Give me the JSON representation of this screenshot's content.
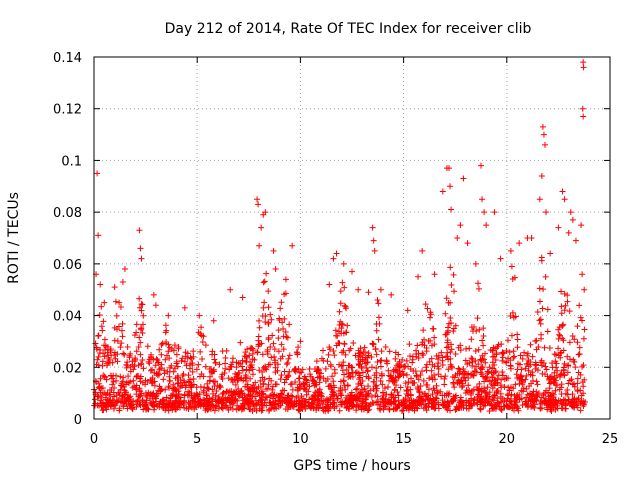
{
  "chart_data": {
    "type": "scatter",
    "title": "Day 212 of 2014, Rate Of TEC Index for receiver clib",
    "xlabel": "GPS time / hours",
    "ylabel": "ROTI / TECUs",
    "xlim": [
      0,
      25
    ],
    "ylim": [
      0,
      0.14
    ],
    "xticks": [
      0,
      5,
      10,
      15,
      20,
      25
    ],
    "xtick_labels": [
      "0",
      "5",
      "10",
      "15",
      "20",
      "25"
    ],
    "yticks": [
      0,
      0.02,
      0.04,
      0.06,
      0.08,
      0.1,
      0.12,
      0.14
    ],
    "ytick_labels": [
      "0",
      "0.02",
      "0.04",
      "0.06",
      "0.08",
      "0.1",
      "0.12",
      "0.14"
    ],
    "grid": true,
    "marker": "+",
    "color": "#ff0000",
    "series": [
      {
        "name": "ROTI",
        "points": [
          [
            0.15,
            0.095
          ],
          [
            0.2,
            0.071
          ],
          [
            0.1,
            0.056
          ],
          [
            0.3,
            0.052
          ],
          [
            0.5,
            0.045
          ],
          [
            1.0,
            0.051
          ],
          [
            1.4,
            0.053
          ],
          [
            1.5,
            0.058
          ],
          [
            2.2,
            0.073
          ],
          [
            2.25,
            0.066
          ],
          [
            2.3,
            0.062
          ],
          [
            2.9,
            0.048
          ],
          [
            3.0,
            0.044
          ],
          [
            3.6,
            0.04
          ],
          [
            4.4,
            0.043
          ],
          [
            5.1,
            0.04
          ],
          [
            5.8,
            0.038
          ],
          [
            6.6,
            0.05
          ],
          [
            7.2,
            0.047
          ],
          [
            7.9,
            0.085
          ],
          [
            7.95,
            0.083
          ],
          [
            8.2,
            0.079
          ],
          [
            8.3,
            0.08
          ],
          [
            8.0,
            0.067
          ],
          [
            8.1,
            0.074
          ],
          [
            8.7,
            0.065
          ],
          [
            8.8,
            0.058
          ],
          [
            9.3,
            0.054
          ],
          [
            9.6,
            0.067
          ],
          [
            10.0,
            0.03
          ],
          [
            11.4,
            0.052
          ],
          [
            11.6,
            0.062
          ],
          [
            11.75,
            0.064
          ],
          [
            12.1,
            0.06
          ],
          [
            12.5,
            0.057
          ],
          [
            12.8,
            0.05
          ],
          [
            13.3,
            0.049
          ],
          [
            13.5,
            0.074
          ],
          [
            13.55,
            0.069
          ],
          [
            13.6,
            0.065
          ],
          [
            13.9,
            0.05
          ],
          [
            14.4,
            0.048
          ],
          [
            15.2,
            0.042
          ],
          [
            15.7,
            0.055
          ],
          [
            15.9,
            0.065
          ],
          [
            16.5,
            0.056
          ],
          [
            16.9,
            0.088
          ],
          [
            17.1,
            0.097
          ],
          [
            17.2,
            0.097
          ],
          [
            17.25,
            0.09
          ],
          [
            17.3,
            0.081
          ],
          [
            17.6,
            0.07
          ],
          [
            17.75,
            0.075
          ],
          [
            17.9,
            0.093
          ],
          [
            18.1,
            0.068
          ],
          [
            18.5,
            0.06
          ],
          [
            18.75,
            0.098
          ],
          [
            18.8,
            0.085
          ],
          [
            18.9,
            0.08
          ],
          [
            19.0,
            0.075
          ],
          [
            19.4,
            0.08
          ],
          [
            19.7,
            0.062
          ],
          [
            20.2,
            0.065
          ],
          [
            20.6,
            0.068
          ],
          [
            21.0,
            0.07
          ],
          [
            21.2,
            0.07
          ],
          [
            21.6,
            0.085
          ],
          [
            21.7,
            0.094
          ],
          [
            21.75,
            0.113
          ],
          [
            21.8,
            0.11
          ],
          [
            21.85,
            0.106
          ],
          [
            21.9,
            0.08
          ],
          [
            22.1,
            0.064
          ],
          [
            22.5,
            0.074
          ],
          [
            22.7,
            0.088
          ],
          [
            22.8,
            0.085
          ],
          [
            23.0,
            0.072
          ],
          [
            23.1,
            0.08
          ],
          [
            23.2,
            0.077
          ],
          [
            23.35,
            0.069
          ],
          [
            23.6,
            0.075
          ],
          [
            23.65,
            0.056
          ],
          [
            23.7,
            0.138
          ],
          [
            23.72,
            0.136
          ],
          [
            23.68,
            0.12
          ],
          [
            23.7,
            0.117
          ],
          [
            23.75,
            0.05
          ]
        ],
        "dense_band": {
          "x_range": [
            0,
            23.8
          ],
          "typical_y_range": [
            0.005,
            0.03
          ],
          "note_bursts_up_to": 0.06
        }
      }
    ]
  }
}
